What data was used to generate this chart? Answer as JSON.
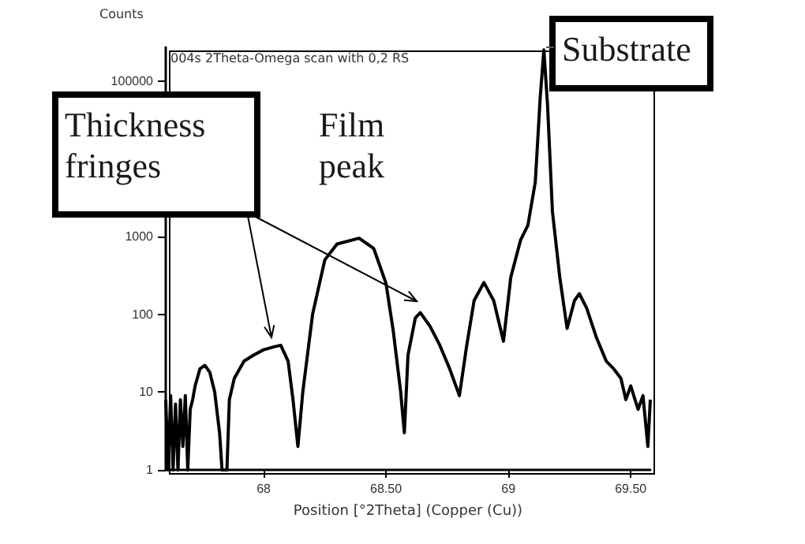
{
  "chart_data": {
    "type": "line",
    "title": "004s 2Theta-Omega scan with 0,2 RS",
    "xlabel": "Position [°2Theta] (Copper (Cu))",
    "ylabel": "Counts",
    "x": [
      67.6,
      67.61,
      67.62,
      67.63,
      67.64,
      67.65,
      67.66,
      67.67,
      67.68,
      67.69,
      67.7,
      67.71,
      67.72,
      67.74,
      67.76,
      67.78,
      67.8,
      67.82,
      67.83,
      67.85,
      67.86,
      67.88,
      67.92,
      67.96,
      68.0,
      68.04,
      68.07,
      68.1,
      68.12,
      68.14,
      68.16,
      68.2,
      68.25,
      68.3,
      68.39,
      68.45,
      68.5,
      68.53,
      68.56,
      68.575,
      68.59,
      68.62,
      68.64,
      68.68,
      68.72,
      68.76,
      68.8,
      68.83,
      68.86,
      68.9,
      68.94,
      68.98,
      69.01,
      69.05,
      69.08,
      69.11,
      69.13,
      69.145,
      69.16,
      69.18,
      69.21,
      69.24,
      69.27,
      69.29,
      69.32,
      69.36,
      69.4,
      69.43,
      69.46,
      69.48,
      69.5,
      69.53,
      69.55,
      69.57,
      69.58
    ],
    "series": [
      {
        "color": "#000000",
        "values": [
          8,
          1,
          9,
          1,
          7,
          1,
          8,
          2,
          9,
          1,
          6,
          8,
          12,
          20,
          22,
          18,
          10,
          3,
          1,
          1,
          8,
          15,
          25,
          30,
          35,
          38,
          40,
          25,
          8,
          2,
          10,
          100,
          500,
          800,
          950,
          700,
          250,
          60,
          10,
          3,
          30,
          90,
          105,
          70,
          40,
          20,
          9,
          40,
          150,
          256,
          150,
          45,
          300,
          900,
          1400,
          5000,
          60000,
          250000,
          50000,
          2100,
          300,
          66,
          150,
          184,
          120,
          50,
          25,
          20,
          15,
          8,
          12,
          6,
          9,
          2,
          8
        ]
      }
    ],
    "xlim": [
      67.6,
      69.58
    ],
    "xticks": [
      68,
      {
        "value": 68.5,
        "label": "68.50"
      },
      69,
      {
        "value": 69.5,
        "label": "69.50"
      }
    ],
    "ylim": [
      1,
      270000
    ],
    "yticks": [
      1,
      10,
      100,
      1000,
      {
        "value": 10000,
        "label": null
      },
      100000
    ],
    "log": true,
    "grid": false,
    "marker": "none",
    "line_style": "solid",
    "annotations": [
      "Thickness fringes",
      "Film peak",
      "Substrate"
    ]
  }
}
